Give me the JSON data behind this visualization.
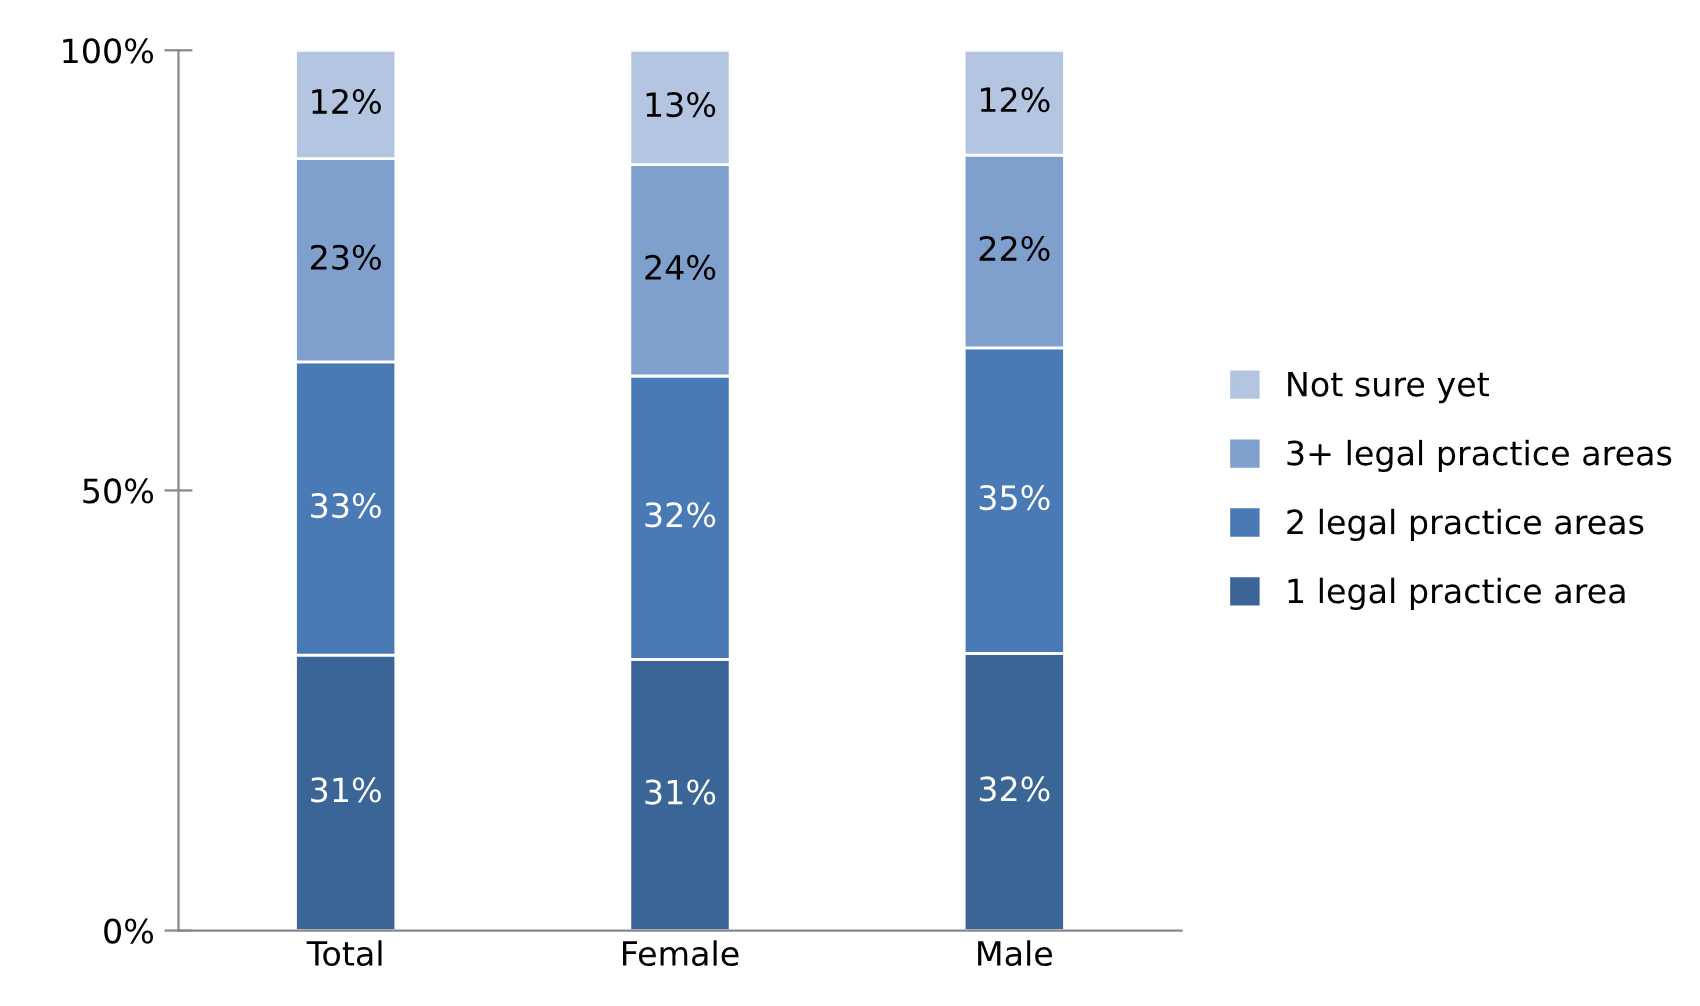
{
  "chart_data": {
    "type": "bar",
    "stacked": true,
    "categories": [
      "Total",
      "Female",
      "Male"
    ],
    "series": [
      {
        "name": "1 legal practice area",
        "color": "#3b6597",
        "values": [
          31.3,
          30.8,
          31.5
        ],
        "value_labels": [
          "31%",
          "31%",
          "32%"
        ]
      },
      {
        "name": "2 legal practice areas",
        "color": "#4a7ab5",
        "values": [
          33.3,
          32.2,
          34.7
        ],
        "value_labels": [
          "33%",
          "32%",
          "35%"
        ]
      },
      {
        "name": "3+ legal practice areas",
        "color": "#7f9fcc",
        "values": [
          23.1,
          24.0,
          21.9
        ],
        "value_labels": [
          "23%",
          "24%",
          "22%"
        ]
      },
      {
        "name": "Not sure yet",
        "color": "#b4c5e1",
        "values": [
          12.3,
          13.0,
          11.9
        ],
        "value_labels": [
          "12%",
          "13%",
          "12%"
        ]
      }
    ],
    "ylim": [
      0,
      100
    ],
    "yticks": [
      {
        "value": 0,
        "label": "0%"
      },
      {
        "value": 50,
        "label": "50%"
      },
      {
        "value": 100,
        "label": "100%"
      }
    ],
    "grid": false,
    "legend": "right"
  }
}
